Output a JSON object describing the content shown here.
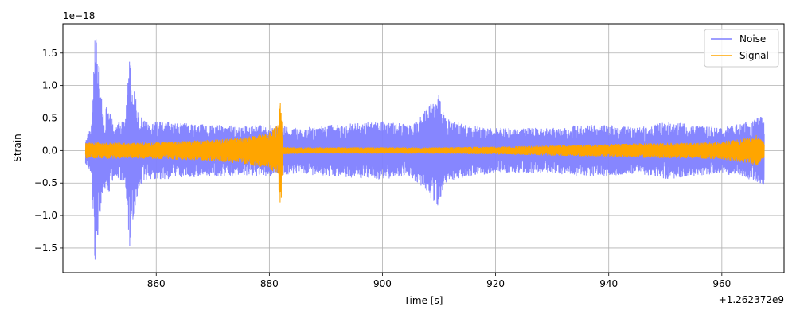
{
  "chart_data": {
    "type": "line",
    "xlabel": "Time [s]",
    "ylabel": "Strain",
    "y_multiplier_label": "1e−18",
    "x_offset_label": "+1.262372e9",
    "xlim": [
      843.5,
      971
    ],
    "ylim": [
      -1.88,
      1.95
    ],
    "x_ticks": [
      860,
      880,
      900,
      920,
      940,
      960
    ],
    "x_tick_labels": [
      "860",
      "880",
      "900",
      "920",
      "940",
      "960"
    ],
    "y_ticks": [
      -1.5,
      -1.0,
      -0.5,
      0.0,
      0.5,
      1.0,
      1.5
    ],
    "y_tick_labels": [
      "−1.5",
      "−1.0",
      "−0.5",
      "0.0",
      "0.5",
      "1.0",
      "1.5"
    ],
    "grid": true,
    "legend_position": "top-right",
    "series": [
      {
        "name": "Noise",
        "color": "#7f7fff",
        "x_range": [
          847.5,
          967.5
        ],
        "envelope": [
          [
            847.5,
            0.22
          ],
          [
            848.5,
            0.35
          ],
          [
            849.2,
            1.8
          ],
          [
            849.8,
            1.5
          ],
          [
            850.5,
            0.6
          ],
          [
            851.5,
            0.7
          ],
          [
            852.5,
            0.4
          ],
          [
            853.5,
            0.45
          ],
          [
            854.5,
            0.5
          ],
          [
            855.3,
            1.5
          ],
          [
            856,
            1.0
          ],
          [
            857,
            0.55
          ],
          [
            858,
            0.45
          ],
          [
            860,
            0.45
          ],
          [
            865,
            0.42
          ],
          [
            870,
            0.4
          ],
          [
            875,
            0.38
          ],
          [
            880,
            0.4
          ],
          [
            882,
            0.38
          ],
          [
            885,
            0.35
          ],
          [
            890,
            0.4
          ],
          [
            895,
            0.42
          ],
          [
            900,
            0.45
          ],
          [
            905,
            0.4
          ],
          [
            910,
            0.88
          ],
          [
            911,
            0.5
          ],
          [
            915,
            0.4
          ],
          [
            920,
            0.35
          ],
          [
            925,
            0.35
          ],
          [
            930,
            0.35
          ],
          [
            935,
            0.4
          ],
          [
            940,
            0.4
          ],
          [
            945,
            0.35
          ],
          [
            950,
            0.45
          ],
          [
            955,
            0.4
          ],
          [
            960,
            0.35
          ],
          [
            965,
            0.45
          ],
          [
            967.5,
            0.55
          ]
        ]
      },
      {
        "name": "Signal",
        "color": "#ffa500",
        "x_range": [
          847.5,
          967.5
        ],
        "envelope": [
          [
            847.5,
            0.12
          ],
          [
            850,
            0.13
          ],
          [
            855,
            0.12
          ],
          [
            860,
            0.13
          ],
          [
            865,
            0.15
          ],
          [
            870,
            0.17
          ],
          [
            875,
            0.2
          ],
          [
            880,
            0.28
          ],
          [
            881.5,
            0.4
          ],
          [
            882,
            1.05
          ],
          [
            882.4,
            0.06
          ],
          [
            885,
            0.05
          ],
          [
            890,
            0.05
          ],
          [
            900,
            0.05
          ],
          [
            910,
            0.05
          ],
          [
            920,
            0.06
          ],
          [
            930,
            0.08
          ],
          [
            940,
            0.1
          ],
          [
            950,
            0.12
          ],
          [
            955,
            0.12
          ],
          [
            960,
            0.14
          ],
          [
            965,
            0.2
          ],
          [
            966,
            0.25
          ],
          [
            967.5,
            0.12
          ]
        ]
      }
    ]
  }
}
